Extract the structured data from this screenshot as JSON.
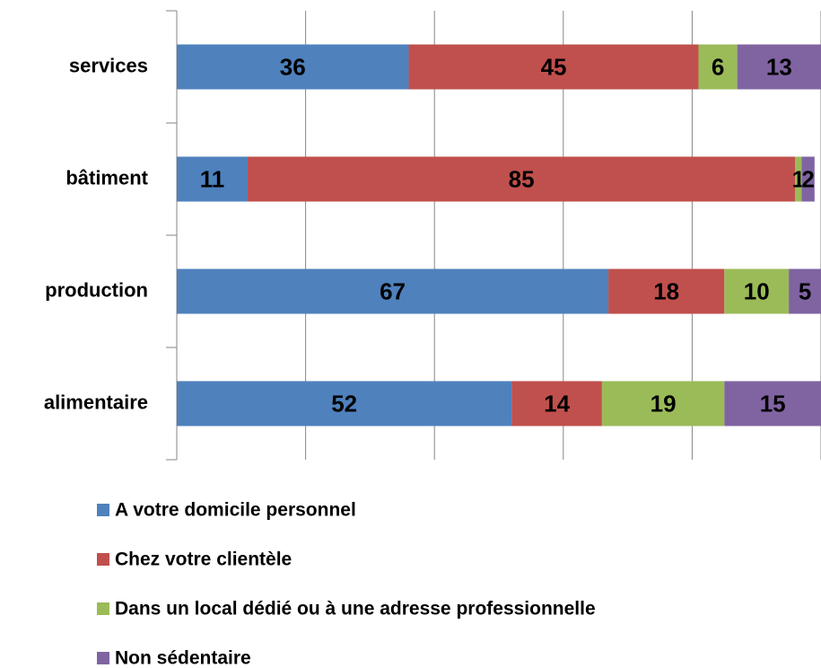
{
  "chart_data": {
    "type": "bar",
    "orientation": "horizontal",
    "stacked": true,
    "categories": [
      "services",
      "bâtiment",
      "production",
      "alimentaire"
    ],
    "series": [
      {
        "name": "A votre domicile personnel",
        "color": "#4f81bd",
        "values": [
          36,
          11,
          67,
          52
        ]
      },
      {
        "name": "Chez votre clientèle",
        "color": "#c0504d",
        "values": [
          45,
          85,
          18,
          14
        ]
      },
      {
        "name": "Dans un local dédié ou à une adresse professionnelle",
        "color": "#9bbb59",
        "values": [
          6,
          1,
          10,
          19
        ]
      },
      {
        "name": "Non sédentaire",
        "color": "#8064a2",
        "values": [
          13,
          2,
          5,
          15
        ]
      }
    ],
    "xlim": [
      0,
      100
    ],
    "xticks": [
      0,
      20,
      40,
      60,
      80,
      100
    ],
    "grid": true,
    "legend": "bottom"
  }
}
